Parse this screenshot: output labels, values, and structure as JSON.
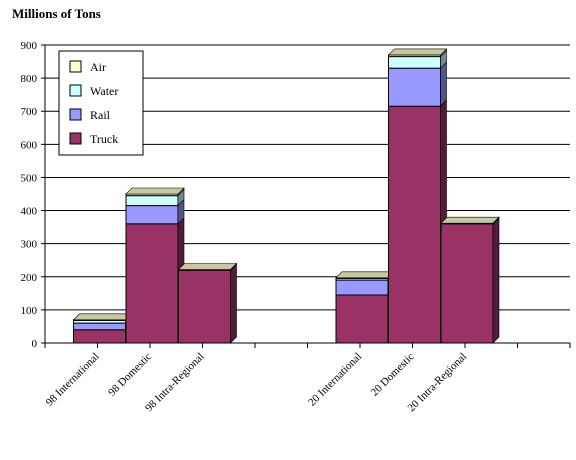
{
  "chart_data": {
    "type": "bar",
    "stacked": true,
    "title": "Millions of Tons",
    "xlabel": "",
    "ylabel": "",
    "ylim": [
      0,
      900
    ],
    "yticks": [
      0,
      100,
      200,
      300,
      400,
      500,
      600,
      700,
      800,
      900
    ],
    "grid": true,
    "legend_position": "top-left",
    "groups": [
      [
        "98 International",
        "98 Domestic",
        "98 Intra-Regional"
      ],
      [
        "20 International",
        "20 Domestic",
        "20 Intra-Regional"
      ]
    ],
    "categories": [
      "98 International",
      "98 Domestic",
      "98 Intra-Regional",
      "20 International",
      "20 Domestic",
      "20 Intra-Regional"
    ],
    "series": [
      {
        "name": "Truck",
        "color": "#993366",
        "values": [
          40,
          360,
          220,
          145,
          715,
          360
        ]
      },
      {
        "name": "Rail",
        "color": "#9999ff",
        "values": [
          20,
          55,
          0,
          45,
          115,
          0
        ]
      },
      {
        "name": "Water",
        "color": "#ccffff",
        "values": [
          8,
          30,
          0,
          5,
          35,
          0
        ]
      },
      {
        "name": "Air",
        "color": "#ffffcc",
        "values": [
          2,
          5,
          2,
          2,
          5,
          2
        ]
      }
    ],
    "legend_order": [
      "Air",
      "Water",
      "Rail",
      "Truck"
    ]
  }
}
